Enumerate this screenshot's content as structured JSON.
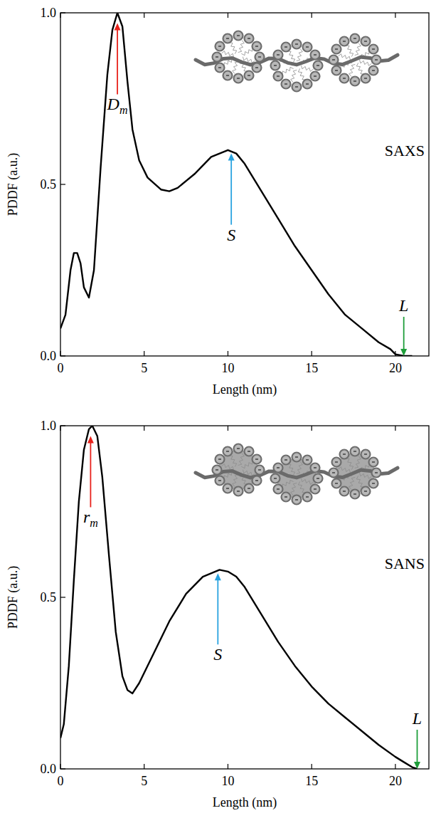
{
  "chart_data": [
    {
      "type": "line",
      "title": "SAXS",
      "x_label": "Length (nm)",
      "y_label": "PDDF (a.u.)",
      "x": [
        0,
        0.3,
        0.6,
        0.8,
        1.0,
        1.2,
        1.4,
        1.7,
        2.0,
        2.4,
        2.8,
        3.1,
        3.4,
        3.7,
        4.0,
        4.3,
        4.7,
        5.2,
        6.0,
        6.5,
        7.0,
        8.0,
        9.0,
        10.0,
        10.5,
        11.0,
        12.0,
        13.0,
        14.0,
        15.0,
        16.0,
        17.0,
        18.0,
        19.0,
        19.7,
        20.0,
        20.5,
        21.0
      ],
      "series": [
        {
          "color": "#000000",
          "values": [
            0.08,
            0.12,
            0.25,
            0.3,
            0.3,
            0.27,
            0.2,
            0.17,
            0.25,
            0.55,
            0.82,
            0.95,
            1.0,
            0.96,
            0.8,
            0.66,
            0.57,
            0.52,
            0.485,
            0.48,
            0.49,
            0.53,
            0.58,
            0.6,
            0.59,
            0.56,
            0.48,
            0.4,
            0.32,
            0.25,
            0.18,
            0.12,
            0.08,
            0.04,
            0.02,
            0.005,
            0.0,
            0.0
          ]
        }
      ],
      "xlim": [
        0,
        22
      ],
      "xticks": [
        0,
        5,
        10,
        15,
        20
      ],
      "ylim": [
        0,
        1
      ],
      "yticks": [
        {
          "value": 0,
          "label": "0.0"
        },
        {
          "value": 0.5,
          "label": "0.5"
        },
        {
          "value": 1,
          "label": "1.0"
        }
      ],
      "annotations": [
        {
          "text": "D",
          "subscript": "m",
          "x": 3.4,
          "y": 0.97,
          "color": "#e8221b"
        },
        {
          "text": "S",
          "x": 10.2,
          "y": 0.59,
          "color": "#29a3e0"
        },
        {
          "text": "L",
          "x": 20.5,
          "y": 0,
          "color": "#1e9e3a"
        }
      ]
    },
    {
      "type": "line",
      "title": "SANS",
      "x_label": "Length (nm)",
      "y_label": "PDDF (a.u.)",
      "x": [
        0,
        0.2,
        0.5,
        0.8,
        1.1,
        1.4,
        1.7,
        1.9,
        2.2,
        2.5,
        2.9,
        3.3,
        3.7,
        4.0,
        4.3,
        4.7,
        5.5,
        6.5,
        7.5,
        8.5,
        9.5,
        10.0,
        10.5,
        11.0,
        12.0,
        13.0,
        14.0,
        15.0,
        16.0,
        17.0,
        18.0,
        19.0,
        20.0,
        20.5,
        21.0,
        21.3
      ],
      "series": [
        {
          "color": "#000000",
          "values": [
            0.09,
            0.13,
            0.3,
            0.55,
            0.78,
            0.93,
            0.99,
            1.0,
            0.97,
            0.85,
            0.62,
            0.4,
            0.27,
            0.23,
            0.22,
            0.25,
            0.33,
            0.43,
            0.51,
            0.56,
            0.58,
            0.575,
            0.56,
            0.53,
            0.45,
            0.37,
            0.3,
            0.24,
            0.19,
            0.15,
            0.11,
            0.07,
            0.035,
            0.02,
            0.005,
            0.0
          ]
        }
      ],
      "xlim": [
        0,
        22
      ],
      "xticks": [
        0,
        5,
        10,
        15,
        20
      ],
      "ylim": [
        0,
        1
      ],
      "yticks": [
        {
          "value": 0,
          "label": "0.0"
        },
        {
          "value": 0.5,
          "label": "0.5"
        },
        {
          "value": 1,
          "label": "1.0"
        }
      ],
      "annotations": [
        {
          "text": "r",
          "subscript": "m",
          "x": 1.8,
          "y": 0.97,
          "color": "#e8221b"
        },
        {
          "text": "S",
          "x": 9.4,
          "y": 0.57,
          "color": "#29a3e0"
        },
        {
          "text": "L",
          "x": 21.3,
          "y": 0,
          "color": "#1e9e3a"
        }
      ]
    }
  ]
}
